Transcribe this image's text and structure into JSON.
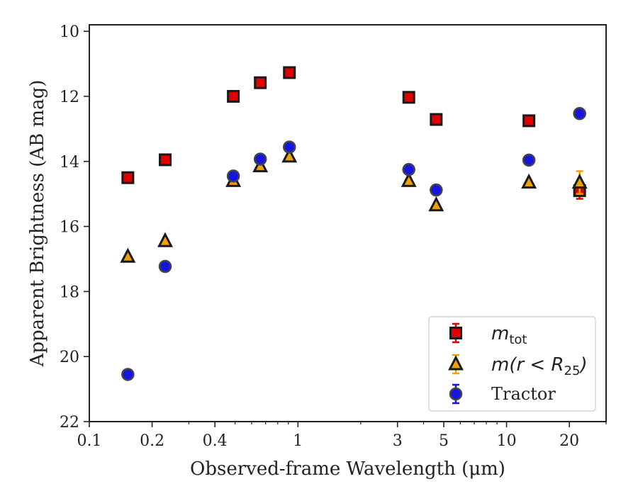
{
  "chart_data": {
    "type": "scatter",
    "xlabel": "Observed-frame Wavelength (μm)",
    "ylabel": "Apparent Brightness (AB mag)",
    "xscale": "log",
    "xlim": [
      0.1,
      30
    ],
    "ylim": [
      22,
      9.8
    ],
    "y_inverted": true,
    "xticks": [
      0.1,
      0.2,
      0.4,
      1,
      3,
      5,
      10,
      20
    ],
    "xtick_labels": [
      "0.1",
      "0.2",
      "0.4",
      "1",
      "3",
      "5",
      "10",
      "20"
    ],
    "yticks": [
      10,
      12,
      14,
      16,
      18,
      20,
      22
    ],
    "ytick_labels": [
      "10",
      "12",
      "14",
      "16",
      "18",
      "20",
      "22"
    ],
    "grid": false,
    "legend_position": "bottom-right",
    "series": [
      {
        "name": "m_tot",
        "label_main": "m",
        "label_sub": "tot",
        "marker": "square",
        "color": "#e00000",
        "edgecolor": "#1a1a1a",
        "x": [
          0.153,
          0.231,
          0.49,
          0.66,
          0.91,
          3.4,
          4.6,
          12.8,
          22.4
        ],
        "y": [
          14.5,
          13.95,
          12.0,
          11.58,
          11.27,
          12.03,
          12.71,
          12.75,
          14.9
        ],
        "yerr": [
          0,
          0,
          0,
          0,
          0,
          0,
          0,
          0,
          0.25
        ]
      },
      {
        "name": "m(r<R25)",
        "label_main": "m(r < R",
        "label_sub": "25",
        "label_close": ")",
        "marker": "triangle",
        "color": "#f0a000",
        "edgecolor": "#1a1a1a",
        "x": [
          0.153,
          0.231,
          0.49,
          0.66,
          0.91,
          3.4,
          4.6,
          12.8,
          22.4
        ],
        "y": [
          16.93,
          16.45,
          14.6,
          14.15,
          13.85,
          14.6,
          15.35,
          14.65,
          14.65
        ],
        "yerr": [
          0,
          0,
          0,
          0,
          0,
          0,
          0,
          0,
          0.35
        ]
      },
      {
        "name": "Tractor",
        "marker": "circle",
        "color": "#1515e0",
        "edgecolor": "#444444",
        "x": [
          0.153,
          0.231,
          0.49,
          0.66,
          0.91,
          3.4,
          4.6,
          12.8,
          22.4
        ],
        "y": [
          20.55,
          17.23,
          14.45,
          13.93,
          13.56,
          14.25,
          14.88,
          13.96,
          12.53
        ],
        "yerr": [
          0,
          0,
          0,
          0,
          0,
          0,
          0,
          0,
          0
        ]
      }
    ]
  }
}
